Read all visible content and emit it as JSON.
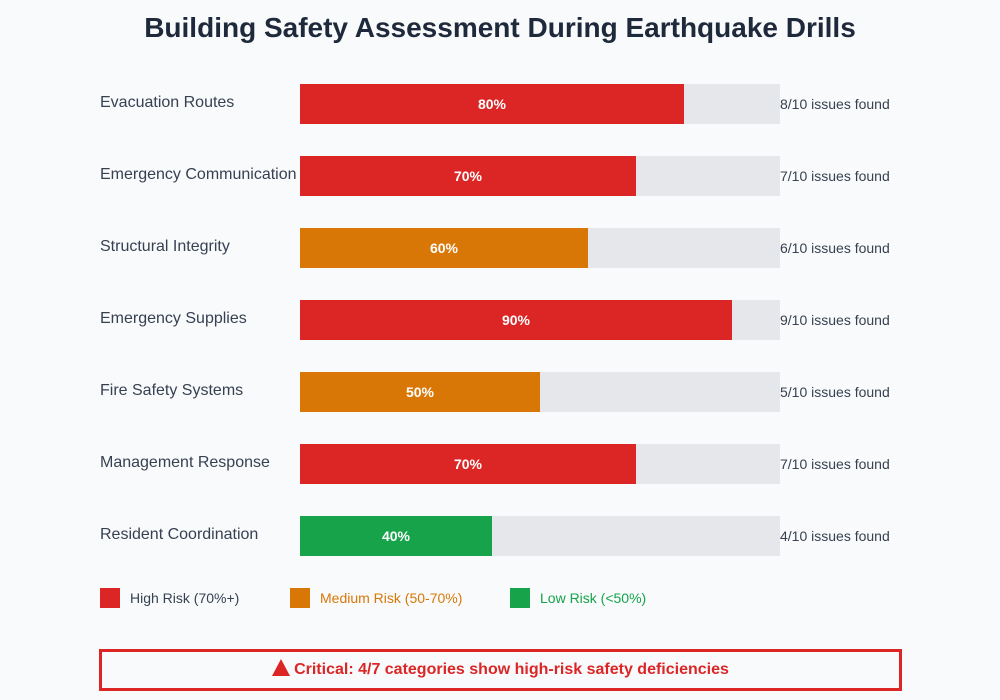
{
  "chart_data": {
    "type": "bar",
    "orientation": "horizontal",
    "title": "Building Safety Assessment During Earthquake Drills",
    "xlim": [
      0,
      100
    ],
    "categories": [
      "Evacuation Routes",
      "Emergency Communication",
      "Structural Integrity",
      "Emergency Supplies",
      "Fire Safety Systems",
      "Management Response",
      "Resident Coordination"
    ],
    "values": [
      80,
      70,
      60,
      90,
      50,
      70,
      40
    ],
    "value_labels": [
      "80%",
      "70%",
      "60%",
      "90%",
      "50%",
      "70%",
      "40%"
    ],
    "issue_labels": [
      "8/10 issues found",
      "7/10 issues found",
      "6/10 issues found",
      "9/10 issues found",
      "5/10 issues found",
      "7/10 issues found",
      "4/10 issues found"
    ],
    "risk": [
      "high",
      "high",
      "medium",
      "high",
      "medium",
      "high",
      "low"
    ],
    "legend": [
      {
        "key": "high",
        "label": "High Risk (70%+)",
        "color": "#dc2626",
        "text_color": "#374151"
      },
      {
        "key": "medium",
        "label": "Medium Risk (50-70%)",
        "color": "#d97706",
        "text_color": "#d97706"
      },
      {
        "key": "low",
        "label": "Low Risk (<50%)",
        "color": "#16a34a",
        "text_color": "#16a34a"
      }
    ],
    "track_color": "#e5e7eb"
  },
  "alert": {
    "icon": "warning-triangle-icon",
    "text": "Critical: 4/7 categories show high-risk safety deficiencies",
    "color": "#dc2626"
  }
}
